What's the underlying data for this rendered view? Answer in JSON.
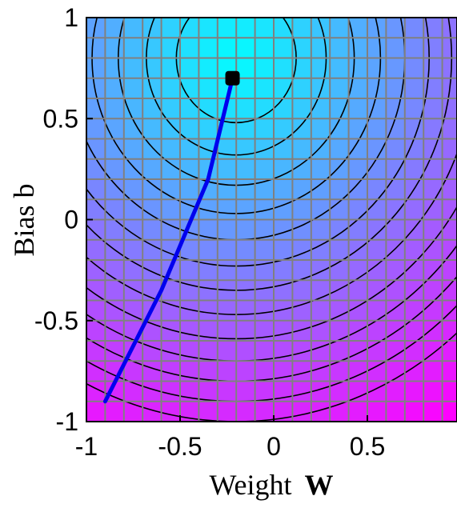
{
  "chart_data": {
    "type": "heatmap",
    "subtype": "error-surface contour plot with training trajectory",
    "xlabel": "Weight",
    "xlabel_symbol": "W",
    "ylabel": "Bias  b",
    "xlim": [
      -1,
      1
    ],
    "ylim": [
      -1,
      1
    ],
    "x_ticks": [
      "-1",
      "-0.5",
      "0",
      "0.5"
    ],
    "y_ticks": [
      "1",
      "0.5",
      "0",
      "-0.5",
      "-1"
    ],
    "x_tick_values": [
      -1,
      -0.5,
      0,
      0.5
    ],
    "y_tick_values": [
      1,
      0.5,
      0,
      -0.5,
      -1
    ],
    "grid": true,
    "grid_spacing": 0.1,
    "surface": {
      "minimum": [
        -0.2,
        0.8
      ],
      "colormap": [
        "#00ffff",
        "#ff00ff"
      ]
    },
    "contour_radii": [
      0.32,
      0.48,
      0.63,
      0.77,
      0.9,
      1.03,
      1.15,
      1.27,
      1.39,
      1.5,
      1.6,
      1.7,
      1.8
    ],
    "trajectory": {
      "color": "#0000ee",
      "points": [
        [
          -0.9,
          -0.9
        ],
        [
          -0.6,
          -0.35
        ],
        [
          -0.35,
          0.2
        ],
        [
          -0.22,
          0.7
        ]
      ],
      "end_marker": [
        -0.22,
        0.7
      ]
    }
  }
}
